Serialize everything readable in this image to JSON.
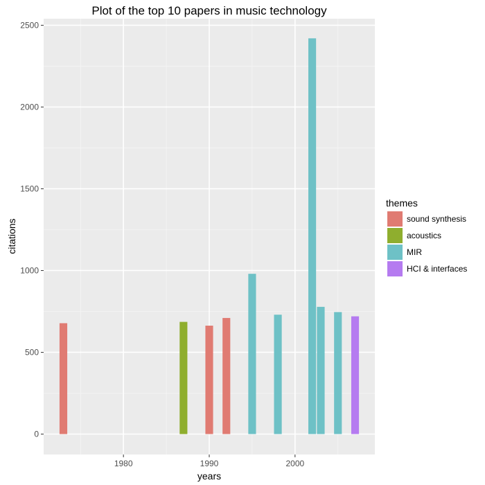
{
  "chart_data": {
    "type": "bar",
    "title": "Plot of the top 10 papers in music technology",
    "xlabel": "years",
    "ylabel": "citations",
    "xlim": [
      1970.7,
      2009.3
    ],
    "ylim": [
      -125,
      2540
    ],
    "x_ticks": [
      1980,
      1990,
      2000
    ],
    "x_minor_ticks": [
      1975,
      1985,
      1995,
      2005
    ],
    "y_ticks": [
      0,
      500,
      1000,
      1500,
      2000,
      2500
    ],
    "y_minor_ticks": [
      250,
      750,
      1250,
      1750,
      2250
    ],
    "bar_width_years": 0.9,
    "legend": {
      "title": "themes",
      "position": "right",
      "entries": [
        {
          "label": "sound synthesis",
          "color": "#E07B72"
        },
        {
          "label": "acoustics",
          "color": "#8FAE2E"
        },
        {
          "label": "MIR",
          "color": "#6EC1C6"
        },
        {
          "label": "HCI & interfaces",
          "color": "#B57BF0"
        }
      ]
    },
    "bars": [
      {
        "year": 1973,
        "citations": 678,
        "theme": "sound synthesis"
      },
      {
        "year": 1987,
        "citations": 686,
        "theme": "acoustics"
      },
      {
        "year": 1990,
        "citations": 663,
        "theme": "sound synthesis"
      },
      {
        "year": 1992,
        "citations": 710,
        "theme": "sound synthesis"
      },
      {
        "year": 1995,
        "citations": 980,
        "theme": "MIR"
      },
      {
        "year": 1998,
        "citations": 730,
        "theme": "MIR"
      },
      {
        "year": 2002,
        "citations": 2420,
        "theme": "MIR"
      },
      {
        "year": 2003,
        "citations": 778,
        "theme": "MIR"
      },
      {
        "year": 2005,
        "citations": 746,
        "theme": "MIR"
      },
      {
        "year": 2007,
        "citations": 720,
        "theme": "HCI & interfaces"
      }
    ]
  }
}
